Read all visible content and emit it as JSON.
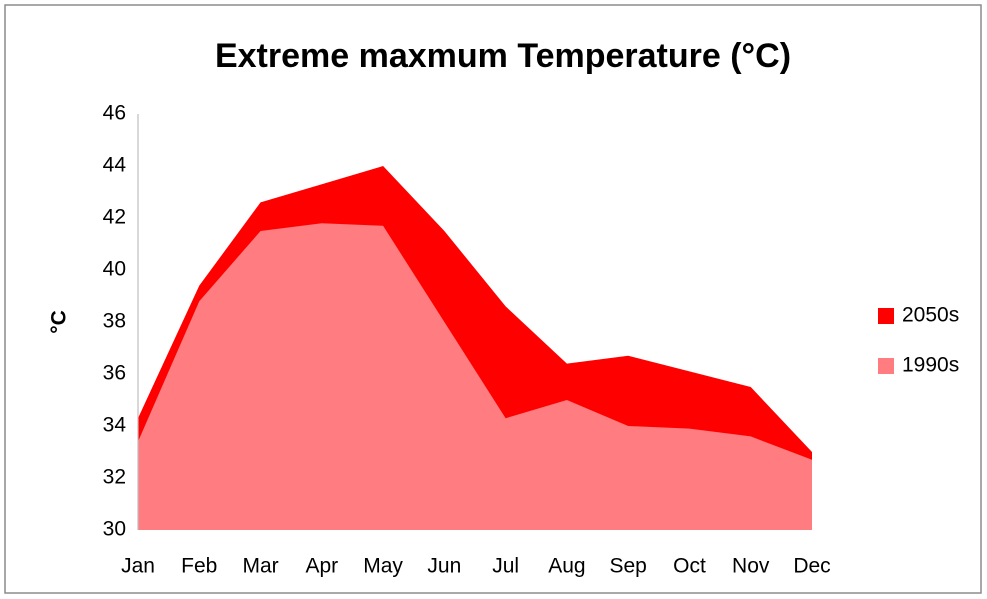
{
  "chart_data": {
    "type": "area",
    "title": "Extreme maxmum Temperature (°C)",
    "ylabel": "°C",
    "categories": [
      "Jan",
      "Feb",
      "Mar",
      "Apr",
      "May",
      "Jun",
      "Jul",
      "Aug",
      "Sep",
      "Oct",
      "Nov",
      "Dec"
    ],
    "series": [
      {
        "name": "2050s",
        "color": "#ff0000",
        "values": [
          34.3,
          39.4,
          42.6,
          43.3,
          44.0,
          41.5,
          38.6,
          36.4,
          36.7,
          36.1,
          35.5,
          33.0
        ]
      },
      {
        "name": "1990s",
        "color": "#ff7c80",
        "values": [
          33.4,
          38.8,
          41.5,
          41.8,
          41.7,
          38.0,
          34.3,
          35.0,
          34.0,
          33.9,
          33.6,
          32.7
        ]
      }
    ],
    "ylim": [
      30,
      46
    ],
    "yticks": [
      30,
      32,
      34,
      36,
      38,
      40,
      42,
      44,
      46
    ],
    "legend": "right"
  }
}
